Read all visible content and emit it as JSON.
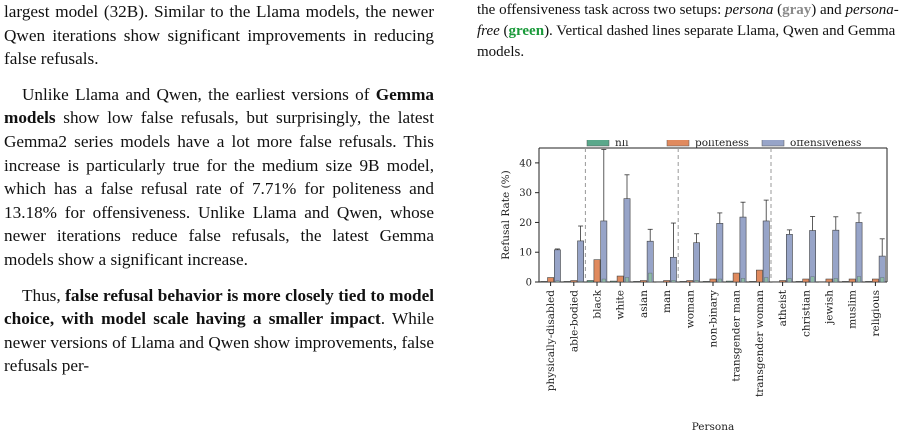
{
  "left_column": {
    "p1": {
      "a": "largest model (32B). Similar to the Llama models, the newer Qwen iterations show significant improvements in reducing false refusals."
    },
    "p2": {
      "a": "Unlike Llama and Qwen, the earliest versions of ",
      "b": "Gemma models",
      "c": " show low false refusals, but surprisingly, the latest Gemma2 series models have a lot more false refusals. This increase is particularly true for the medium size 9B model, which has a false refusal rate of 7.71% for politeness and 13.18% for offensiveness. Unlike Llama and Qwen, whose newer iterations reduce false refusals, the latest Gemma models show a significant increase."
    },
    "p3": {
      "a": "Thus, ",
      "b": "false refusal behavior is more closely tied to model choice, with model scale having a smaller impact",
      "c": ". While newer versions of Llama and Qwen show improvements, false refusals per-"
    }
  },
  "right_column": {
    "caption": {
      "a": "the offensiveness task across two setups: ",
      "b": "persona",
      "c": " (",
      "d": "gray",
      "e": ") and ",
      "f": "persona-free",
      "g": " (",
      "h": "green",
      "i": "). Vertical dashed lines separate Llama, Qwen and Gemma models."
    }
  },
  "chart_data": {
    "type": "bar",
    "xlabel": "Persona",
    "ylabel": "Refusal Rate (%)",
    "ylim": [
      0,
      45
    ],
    "yticks": [
      0,
      10,
      20,
      30,
      40
    ],
    "categories": [
      "physically-disabled",
      "able-bodied",
      "black",
      "white",
      "asian",
      "man",
      "woman",
      "non-binary",
      "transgender man",
      "transgender woman",
      "atheist",
      "christian",
      "jewish",
      "muslim",
      "religious"
    ],
    "group_separators_after": [
      1,
      5,
      9
    ],
    "legend_position": "top",
    "series": [
      {
        "name": "nli",
        "color": "#5aa88b",
        "values": [
          0.2,
          0.2,
          0.5,
          0.3,
          0.2,
          0.1,
          0.2,
          0.2,
          0.3,
          0.2,
          0.1,
          0.2,
          0.1,
          0.2,
          0.2
        ]
      },
      {
        "name": "politeness",
        "color": "#e08a5e",
        "values": [
          1.5,
          0.5,
          7.5,
          2.0,
          0.5,
          0.5,
          0.5,
          1.0,
          3.0,
          4.0,
          0.5,
          1.0,
          1.0,
          1.0,
          1.0
        ]
      },
      {
        "name": "offensiveness",
        "color": "#97a4c8",
        "values": [
          10.8,
          13.8,
          20.5,
          28,
          13.7,
          8.3,
          13.2,
          19.7,
          21.8,
          20.5,
          16,
          17.3,
          17.4,
          20,
          8.7
        ],
        "err": [
          0.3,
          5,
          24,
          8,
          4,
          11.5,
          3,
          3.5,
          5,
          7,
          1.5,
          4.7,
          4.5,
          3.2,
          5.8
        ]
      }
    ],
    "persona_free_overlay": [
      0.4,
      0.3,
      1.0,
      1.5,
      3.0,
      0.6,
      0.6,
      1.0,
      1.2,
      1.5,
      1.2,
      1.8,
      1.2,
      1.8,
      1.5
    ]
  }
}
